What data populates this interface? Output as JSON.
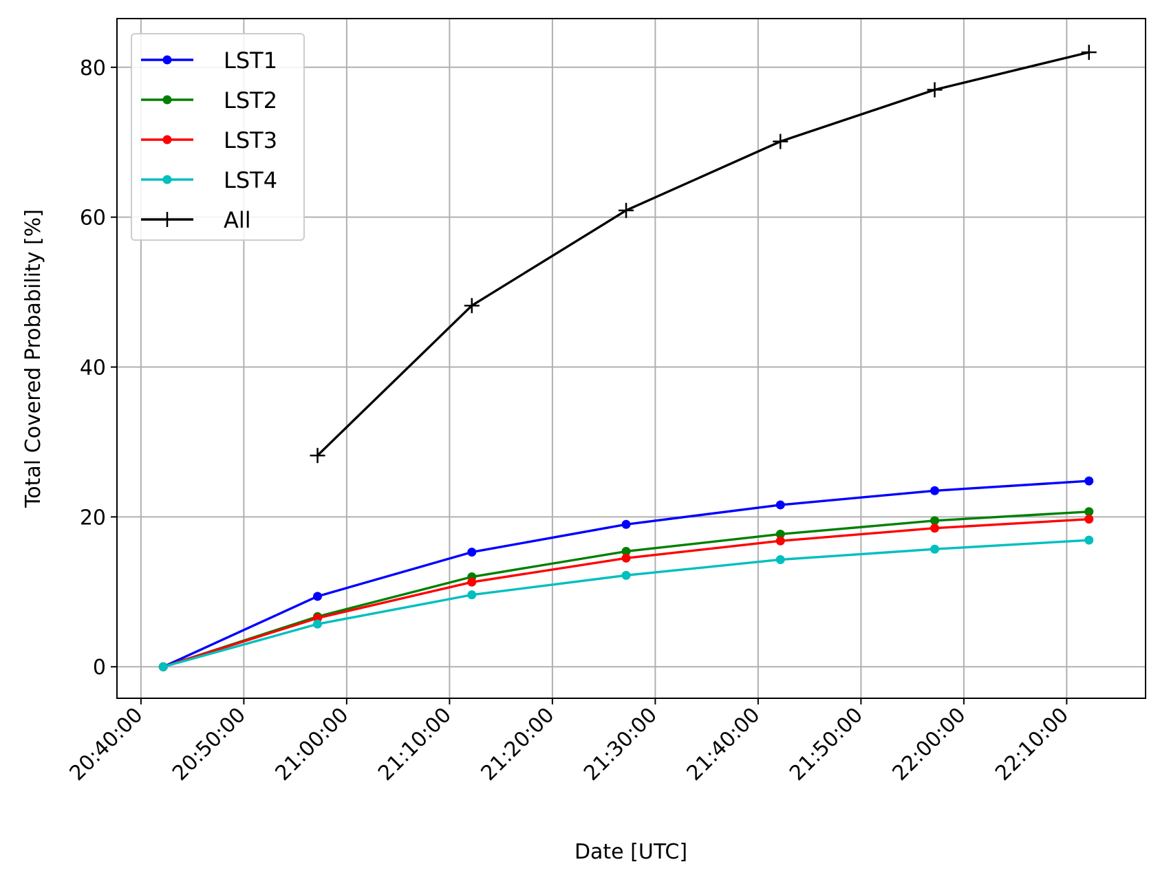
{
  "chart_data": {
    "type": "line",
    "title": "",
    "xlabel": "Date [UTC]",
    "ylabel": "Total Covered Probability [%]",
    "xlim": [
      "20:37:40",
      "22:17:40"
    ],
    "ylim": [
      -4.2,
      86.5
    ],
    "x_ticks": [
      "20:40:00",
      "20:50:00",
      "21:00:00",
      "21:10:00",
      "21:20:00",
      "21:30:00",
      "21:40:00",
      "21:50:00",
      "22:00:00",
      "22:10:00"
    ],
    "y_ticks": [
      0,
      20,
      40,
      60,
      80
    ],
    "grid": true,
    "legend_position": "upper-left",
    "series": [
      {
        "name": "LST1",
        "color": "#0000ff",
        "marker": "circle",
        "x": [
          "20:42:10",
          "20:57:10",
          "21:12:10",
          "21:27:10",
          "21:42:10",
          "21:57:10",
          "22:12:10"
        ],
        "values": [
          0,
          9.4,
          15.3,
          19.0,
          21.6,
          23.5,
          24.8
        ]
      },
      {
        "name": "LST2",
        "color": "#008000",
        "marker": "circle",
        "x": [
          "20:42:10",
          "20:57:10",
          "21:12:10",
          "21:27:10",
          "21:42:10",
          "21:57:10",
          "22:12:10"
        ],
        "values": [
          0,
          6.7,
          12.0,
          15.4,
          17.7,
          19.5,
          20.7
        ]
      },
      {
        "name": "LST3",
        "color": "#ff0000",
        "marker": "circle",
        "x": [
          "20:42:10",
          "20:57:10",
          "21:12:10",
          "21:27:10",
          "21:42:10",
          "21:57:10",
          "22:12:10"
        ],
        "values": [
          0,
          6.5,
          11.3,
          14.5,
          16.8,
          18.5,
          19.7
        ]
      },
      {
        "name": "LST4",
        "color": "#00bfbf",
        "marker": "circle",
        "x": [
          "20:42:10",
          "20:57:10",
          "21:12:10",
          "21:27:10",
          "21:42:10",
          "21:57:10",
          "22:12:10"
        ],
        "values": [
          0,
          5.7,
          9.6,
          12.2,
          14.3,
          15.7,
          16.9
        ]
      },
      {
        "name": "All",
        "color": "#000000",
        "marker": "plus",
        "x": [
          "20:57:10",
          "21:12:10",
          "21:27:10",
          "21:42:10",
          "21:57:10",
          "22:12:10"
        ],
        "values": [
          28.2,
          48.2,
          60.9,
          70.1,
          77.0,
          82.0
        ]
      }
    ]
  }
}
